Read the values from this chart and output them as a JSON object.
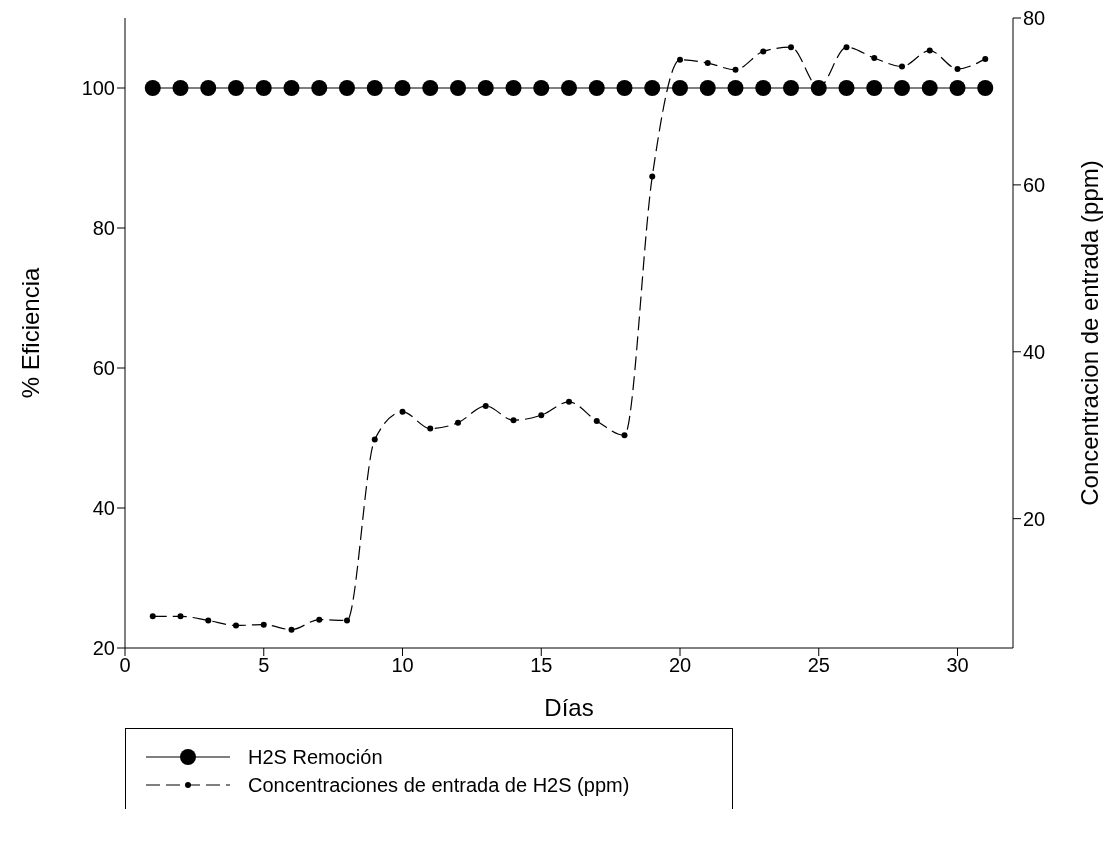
{
  "chart_data": {
    "type": "line",
    "xlabel": "Días",
    "ylabel": "% Eficiencia",
    "y2label": "Concentracion de entrada (ppm)",
    "x": [
      1,
      2,
      3,
      4,
      5,
      6,
      7,
      8,
      9,
      10,
      11,
      12,
      13,
      14,
      15,
      16,
      17,
      18,
      19,
      20,
      21,
      22,
      23,
      24,
      25,
      26,
      27,
      28,
      29,
      30,
      31
    ],
    "series": [
      {
        "name": "H2S Remoción",
        "color": "#000000",
        "marker": "circle",
        "line_style": "solid",
        "values": [
          100,
          100,
          100,
          100,
          100,
          100,
          100,
          100,
          100,
          100,
          100,
          100,
          100,
          100,
          100,
          100,
          100,
          100,
          100,
          100,
          100,
          100,
          100,
          100,
          100,
          100,
          100,
          100,
          100,
          100,
          100
        ]
      },
      {
        "name": "Concentraciones de entrada de H2S (ppm)",
        "color": "#000000",
        "axis": "y2",
        "marker": "circle",
        "line_style": "dashed",
        "values": [
          8.3,
          8.3,
          7.8,
          7.2,
          7.3,
          6.7,
          7.9,
          7.8,
          29.5,
          32.8,
          30.8,
          31.5,
          33.5,
          31.8,
          32.4,
          34.0,
          31.7,
          30.0,
          61.0,
          75.0,
          74.6,
          73.8,
          76.0,
          76.5,
          71.7,
          76.5,
          75.2,
          74.2,
          76.1,
          73.9,
          75.1
        ]
      }
    ],
    "xlim": [
      0,
      32
    ],
    "xticks": [
      0,
      5,
      10,
      15,
      20,
      25,
      30
    ],
    "ylim": [
      20,
      110
    ],
    "yticks": [
      20,
      40,
      60,
      80,
      100
    ],
    "y2lim": [
      4.5,
      80
    ],
    "y2ticks": [
      20,
      40,
      60,
      80
    ],
    "grid": false,
    "legend": "bottom"
  }
}
